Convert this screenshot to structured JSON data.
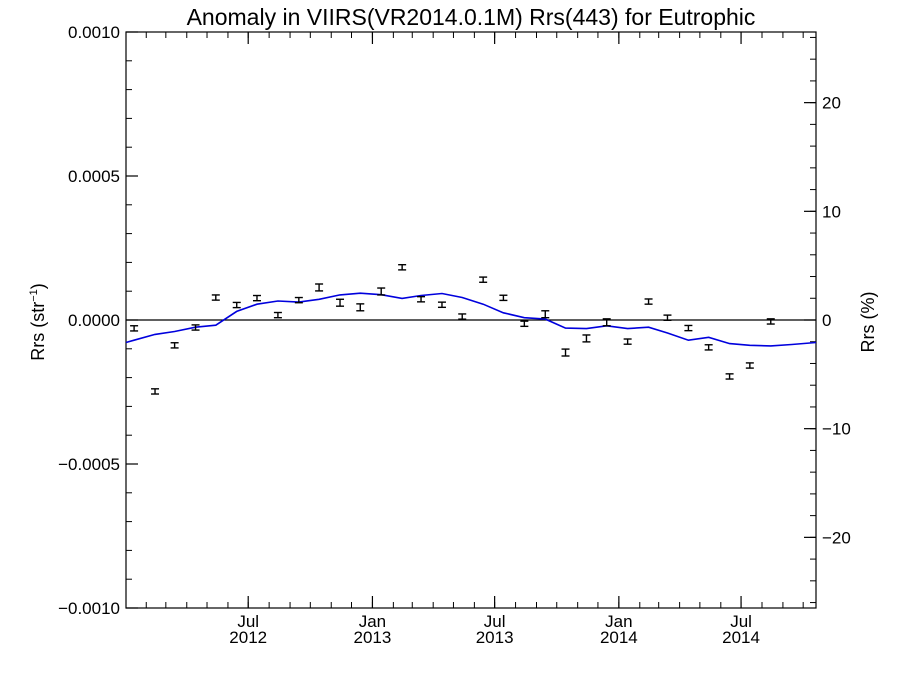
{
  "chart_data": {
    "type": "scatter",
    "title": "Anomaly in VIIRS(VR2014.0.1M) Rrs(443) for Eutrophic",
    "ylabel_left": {
      "base": "Rrs (str",
      "sup": "−1",
      "tail": ")"
    },
    "ylabel_right": "Rrs (%)",
    "x_range": [
      "2012-01-02",
      "2014-10-20"
    ],
    "y_left_range": [
      -0.001,
      0.001
    ],
    "y_right_range": [
      -26.5,
      26.5
    ],
    "y_left_ticks": [
      {
        "value": 0.001,
        "label": "0.0010"
      },
      {
        "value": 0.0005,
        "label": "0.0005"
      },
      {
        "value": 0.0,
        "label": "0.0000"
      },
      {
        "value": -0.0005,
        "label": "−0.0005"
      },
      {
        "value": -0.001,
        "label": "−0.0010"
      }
    ],
    "y_right_ticks": [
      {
        "value": 20,
        "label": "20"
      },
      {
        "value": 10,
        "label": "10"
      },
      {
        "value": 0,
        "label": "0"
      },
      {
        "value": -10,
        "label": "−10"
      },
      {
        "value": -20,
        "label": "−20"
      }
    ],
    "x_ticks": [
      {
        "date": "2012-07-01",
        "month": "Jul",
        "year": "2012"
      },
      {
        "date": "2013-01-01",
        "month": "Jan",
        "year": "2013"
      },
      {
        "date": "2013-07-01",
        "month": "Jul",
        "year": "2013"
      },
      {
        "date": "2014-01-01",
        "month": "Jan",
        "year": "2014"
      },
      {
        "date": "2014-07-01",
        "month": "Jul",
        "year": "2014"
      }
    ],
    "zero_line": 0,
    "points": [
      {
        "date": "2012-01-14",
        "y": -2.9e-05,
        "err": 9e-06
      },
      {
        "date": "2012-02-14",
        "y": -0.000248,
        "err": 9e-06
      },
      {
        "date": "2012-03-14",
        "y": -8.8e-05,
        "err": 9e-06
      },
      {
        "date": "2012-04-14",
        "y": -2.6e-05,
        "err": 9e-06
      },
      {
        "date": "2012-05-14",
        "y": 7.8e-05,
        "err": 9e-06
      },
      {
        "date": "2012-06-14",
        "y": 5.2e-05,
        "err": 9e-06
      },
      {
        "date": "2012-07-14",
        "y": 7.6e-05,
        "err": 9e-06
      },
      {
        "date": "2012-08-14",
        "y": 1.7e-05,
        "err": 9e-06
      },
      {
        "date": "2012-09-14",
        "y": 6.9e-05,
        "err": 9e-06
      },
      {
        "date": "2012-10-14",
        "y": 0.000113,
        "err": 1.2e-05
      },
      {
        "date": "2012-11-14",
        "y": 6e-05,
        "err": 1.2e-05
      },
      {
        "date": "2012-12-14",
        "y": 4.4e-05,
        "err": 1.2e-05
      },
      {
        "date": "2013-01-14",
        "y": 9.9e-05,
        "err": 1.2e-05
      },
      {
        "date": "2013-02-14",
        "y": 0.000183,
        "err": 9e-06
      },
      {
        "date": "2013-03-14",
        "y": 7.2e-05,
        "err": 9e-06
      },
      {
        "date": "2013-04-14",
        "y": 5.3e-05,
        "err": 9e-06
      },
      {
        "date": "2013-05-14",
        "y": 1.2e-05,
        "err": 9e-06
      },
      {
        "date": "2013-06-14",
        "y": 0.00014,
        "err": 9e-06
      },
      {
        "date": "2013-07-14",
        "y": 7.7e-05,
        "err": 9e-06
      },
      {
        "date": "2013-08-14",
        "y": -1.3e-05,
        "err": 9e-06
      },
      {
        "date": "2013-09-14",
        "y": 2e-05,
        "err": 1.2e-05
      },
      {
        "date": "2013-10-14",
        "y": -0.000113,
        "err": 1.2e-05
      },
      {
        "date": "2013-11-14",
        "y": -6.4e-05,
        "err": 1.2e-05
      },
      {
        "date": "2013-12-14",
        "y": -8e-06,
        "err": 1.2e-05
      },
      {
        "date": "2014-01-14",
        "y": -7.5e-05,
        "err": 9e-06
      },
      {
        "date": "2014-02-14",
        "y": 6.4e-05,
        "err": 9e-06
      },
      {
        "date": "2014-03-14",
        "y": 8e-06,
        "err": 9e-06
      },
      {
        "date": "2014-04-14",
        "y": -2.8e-05,
        "err": 9e-06
      },
      {
        "date": "2014-05-14",
        "y": -9.5e-05,
        "err": 9e-06
      },
      {
        "date": "2014-06-14",
        "y": -0.000196,
        "err": 9e-06
      },
      {
        "date": "2014-07-14",
        "y": -0.000158,
        "err": 9e-06
      },
      {
        "date": "2014-08-14",
        "y": -5e-06,
        "err": 9e-06
      }
    ],
    "line": {
      "color": "#0000dd",
      "points": [
        {
          "date": "2012-01-02",
          "y": -7.8e-05
        },
        {
          "date": "2012-01-14",
          "y": -7e-05
        },
        {
          "date": "2012-02-14",
          "y": -5e-05
        },
        {
          "date": "2012-03-14",
          "y": -4e-05
        },
        {
          "date": "2012-04-14",
          "y": -2.5e-05
        },
        {
          "date": "2012-05-14",
          "y": -1.8e-05
        },
        {
          "date": "2012-06-14",
          "y": 3e-05
        },
        {
          "date": "2012-07-14",
          "y": 5.5e-05
        },
        {
          "date": "2012-08-14",
          "y": 6.6e-05
        },
        {
          "date": "2012-09-14",
          "y": 6.2e-05
        },
        {
          "date": "2012-10-14",
          "y": 7.2e-05
        },
        {
          "date": "2012-11-14",
          "y": 8.7e-05
        },
        {
          "date": "2012-12-14",
          "y": 9.3e-05
        },
        {
          "date": "2013-01-14",
          "y": 8.8e-05
        },
        {
          "date": "2013-02-14",
          "y": 7.5e-05
        },
        {
          "date": "2013-03-14",
          "y": 8.5e-05
        },
        {
          "date": "2013-04-14",
          "y": 9.2e-05
        },
        {
          "date": "2013-05-14",
          "y": 7.8e-05
        },
        {
          "date": "2013-06-14",
          "y": 5.5e-05
        },
        {
          "date": "2013-07-14",
          "y": 2.5e-05
        },
        {
          "date": "2013-08-14",
          "y": 8e-06
        },
        {
          "date": "2013-09-14",
          "y": 3e-06
        },
        {
          "date": "2013-10-14",
          "y": -2.8e-05
        },
        {
          "date": "2013-11-14",
          "y": -3e-05
        },
        {
          "date": "2013-12-14",
          "y": -2e-05
        },
        {
          "date": "2014-01-14",
          "y": -3e-05
        },
        {
          "date": "2014-02-14",
          "y": -2.5e-05
        },
        {
          "date": "2014-03-14",
          "y": -4.5e-05
        },
        {
          "date": "2014-04-14",
          "y": -7e-05
        },
        {
          "date": "2014-05-14",
          "y": -6e-05
        },
        {
          "date": "2014-06-14",
          "y": -8.2e-05
        },
        {
          "date": "2014-07-14",
          "y": -8.8e-05
        },
        {
          "date": "2014-08-14",
          "y": -9e-05
        },
        {
          "date": "2014-09-14",
          "y": -8.5e-05
        },
        {
          "date": "2014-10-20",
          "y": -7.8e-05
        }
      ]
    },
    "point_color": "#000000",
    "grid": false,
    "legend": "none"
  }
}
